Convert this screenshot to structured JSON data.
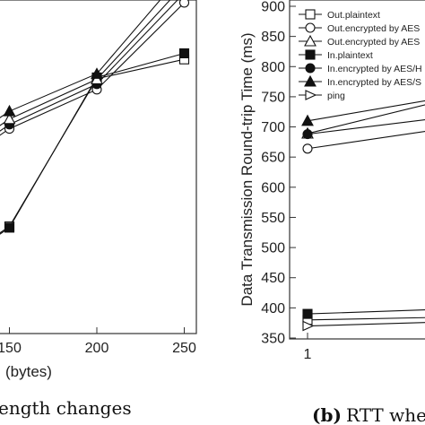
{
  "chart_data": [
    {
      "type": "line",
      "xlabel": "(bytes)",
      "x": [
        150,
        200,
        250
      ],
      "xticks": [
        150,
        200,
        250
      ],
      "ylim": [
        350,
        900
      ],
      "grid": false,
      "series": [
        {
          "marker": "open-square",
          "values": [
            535,
            780,
            812
          ]
        },
        {
          "marker": "filled-square",
          "values": [
            533,
            782,
            822
          ]
        },
        {
          "marker": "open-circle",
          "values": [
            697,
            762,
            906
          ]
        },
        {
          "marker": "filled-circle",
          "values": [
            704,
            771,
            922
          ]
        },
        {
          "marker": "open-triangle",
          "values": [
            713,
            779,
            936
          ]
        },
        {
          "marker": "filled-triangle",
          "values": [
            726,
            788,
            957
          ]
        }
      ],
      "caption": "ength changes"
    },
    {
      "type": "line",
      "ylabel": "Data Transmission Round-trip Time (ms)",
      "yticks": [
        350,
        400,
        450,
        500,
        550,
        600,
        650,
        700,
        750,
        800,
        850,
        900
      ],
      "ylim": [
        350,
        900
      ],
      "x": [
        1
      ],
      "xticks": [
        1
      ],
      "legend_position": "top-left",
      "grid": false,
      "series": [
        {
          "name": "Out.plaintext",
          "marker": "open-square",
          "values": [
            380
          ]
        },
        {
          "name": "Out.encrypted by AES",
          "marker": "open-circle",
          "values": [
            664
          ]
        },
        {
          "name": "Out.encrypted by AES",
          "marker": "open-triangle",
          "values": [
            689
          ]
        },
        {
          "name": "In.plaintext",
          "marker": "filled-square",
          "values": [
            390
          ]
        },
        {
          "name": "In.encrypted by AES/H",
          "marker": "filled-circle",
          "values": [
            688
          ]
        },
        {
          "name": "In.encrypted by AES/S",
          "marker": "filled-triangle",
          "values": [
            710
          ]
        },
        {
          "name": "ping",
          "marker": "open-triangle-right",
          "values": [
            370
          ]
        }
      ],
      "caption_bold": "(b)",
      "caption": "RTT whe"
    }
  ]
}
